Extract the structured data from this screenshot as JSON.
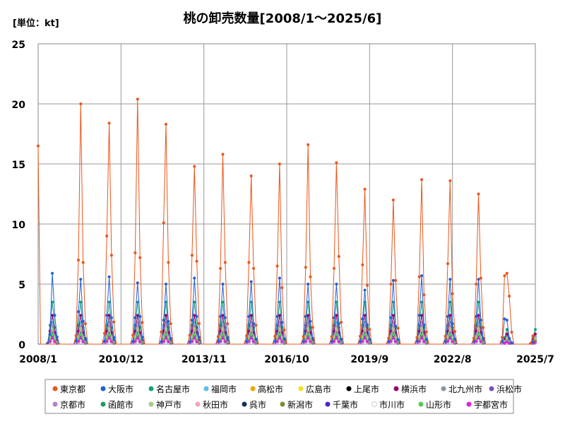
{
  "unit_label": "[単位：kt]",
  "chart_data": {
    "type": "line",
    "title": "桃の卸売数量[2008/1～2025/6]",
    "xlabel": "",
    "ylabel": "",
    "ylim": [
      0,
      25
    ],
    "yticks": [
      0,
      5,
      10,
      15,
      20,
      25
    ],
    "x_range": [
      "2008/1",
      "2025/7"
    ],
    "xticks": [
      "2008/1",
      "2010/12",
      "2013/11",
      "2016/10",
      "2019/9",
      "2022/8",
      "2025/7"
    ],
    "grid": true,
    "legend_position": "bottom",
    "series": [
      {
        "name": "東京都",
        "color": "#e8571c",
        "peaks": [
          {
            "year": 2008,
            "values": [
              16.5,
              0,
              0
            ]
          },
          {
            "year": 2009,
            "values": [
              7.0,
              20.0,
              6.8
            ]
          },
          {
            "year": 2010,
            "values": [
              9.0,
              18.4,
              7.4
            ]
          },
          {
            "year": 2011,
            "values": [
              7.6,
              20.4,
              7.2
            ]
          },
          {
            "year": 2012,
            "values": [
              10.1,
              18.3,
              6.8
            ]
          },
          {
            "year": 2013,
            "values": [
              7.4,
              14.8,
              6.9
            ]
          },
          {
            "year": 2014,
            "values": [
              6.3,
              15.8,
              6.8
            ]
          },
          {
            "year": 2015,
            "values": [
              6.8,
              14.0,
              6.3
            ]
          },
          {
            "year": 2016,
            "values": [
              6.5,
              15.0,
              4.7
            ]
          },
          {
            "year": 2017,
            "values": [
              6.4,
              16.6,
              5.6
            ]
          },
          {
            "year": 2018,
            "values": [
              6.3,
              15.1,
              7.3
            ]
          },
          {
            "year": 2019,
            "values": [
              6.6,
              12.9,
              4.9
            ]
          },
          {
            "year": 2020,
            "values": [
              5.0,
              12.0,
              5.3
            ]
          },
          {
            "year": 2021,
            "values": [
              5.6,
              13.7,
              4.1
            ]
          },
          {
            "year": 2022,
            "values": [
              6.7,
              13.6,
              4.2
            ]
          },
          {
            "year": 2023,
            "values": [
              5.0,
              12.5,
              5.5
            ]
          },
          {
            "year": 2024,
            "values": [
              5.7,
              5.9,
              4.0
            ]
          },
          {
            "year": 2025,
            "values": [
              0.7,
              0,
              0
            ]
          }
        ]
      },
      {
        "name": "大阪市",
        "color": "#2060d8",
        "peaks": [
          {
            "year": 2008,
            "values": [
              0.8,
              5.9,
              2.4
            ]
          },
          {
            "year": 2009,
            "values": [
              2.7,
              5.4,
              1.9
            ]
          },
          {
            "year": 2010,
            "values": [
              2.4,
              5.6,
              2.2
            ]
          },
          {
            "year": 2011,
            "values": [
              2.2,
              5.1,
              2.3
            ]
          },
          {
            "year": 2012,
            "values": [
              2.0,
              5.0,
              1.9
            ]
          },
          {
            "year": 2013,
            "values": [
              2.0,
              5.5,
              2.3
            ]
          },
          {
            "year": 2014,
            "values": [
              2.3,
              5.0,
              2.2
            ]
          },
          {
            "year": 2015,
            "values": [
              2.3,
              5.2,
              1.7
            ]
          },
          {
            "year": 2016,
            "values": [
              2.3,
              5.5,
              1.8
            ]
          },
          {
            "year": 2017,
            "values": [
              2.3,
              5.0,
              1.9
            ]
          },
          {
            "year": 2018,
            "values": [
              2.2,
              5.0,
              1.7
            ]
          },
          {
            "year": 2019,
            "values": [
              2.1,
              4.5,
              1.6
            ]
          },
          {
            "year": 2020,
            "values": [
              2.2,
              5.3,
              1.5
            ]
          },
          {
            "year": 2021,
            "values": [
              2.4,
              5.7,
              1.6
            ]
          },
          {
            "year": 2022,
            "values": [
              2.3,
              5.4,
              1.7
            ]
          },
          {
            "year": 2023,
            "values": [
              2.3,
              5.4,
              2.0
            ]
          },
          {
            "year": 2024,
            "values": [
              2.1,
              2.0,
              0.5
            ]
          },
          {
            "year": 2025,
            "values": [
              0.2,
              0,
              0
            ]
          }
        ]
      },
      {
        "name": "名古屋市",
        "color": "#17a07a",
        "peak": 3.5
      },
      {
        "name": "福岡市",
        "color": "#5bc0e6",
        "peak": 1.8
      },
      {
        "name": "高松市",
        "color": "#f0a400",
        "peak": 0.6
      },
      {
        "name": "広島市",
        "color": "#f5e21a",
        "peak": 1.2
      },
      {
        "name": "上尾市",
        "color": "#000000",
        "peak": 0.3
      },
      {
        "name": "横浜市",
        "color": "#990070",
        "peak": 2.4
      },
      {
        "name": "北九州市",
        "color": "#8c96a0",
        "peak": 1.0
      },
      {
        "name": "浜松市",
        "color": "#7a50b8",
        "peak": 0.9
      },
      {
        "name": "京都市",
        "color": "#b085c8",
        "peak": 1.5
      },
      {
        "name": "函館市",
        "color": "#1f9e5a",
        "peak": 0.4
      },
      {
        "name": "神戸市",
        "color": "#a4cc84",
        "peak": 1.3
      },
      {
        "name": "秋田市",
        "color": "#f3a2c2",
        "peak": 0.5
      },
      {
        "name": "呉市",
        "color": "#14305e",
        "peak": 0.3
      },
      {
        "name": "新潟市",
        "color": "#7a8a3a",
        "peak": 0.6
      },
      {
        "name": "千葉市",
        "color": "#5020c8",
        "peak": 0.7
      },
      {
        "name": "市川市",
        "color": "#ffffff",
        "peak": 0.3
      },
      {
        "name": "山形市",
        "color": "#52cc52",
        "peak": 0.8
      },
      {
        "name": "宇都宮市",
        "color": "#e020e0",
        "peak": 0.5
      }
    ]
  }
}
